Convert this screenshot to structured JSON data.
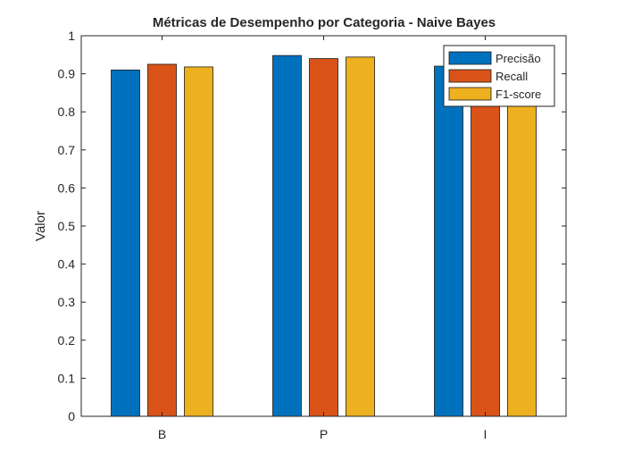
{
  "chart_data": {
    "type": "bar",
    "title": "Métricas de Desempenho por Categoria - Naive Bayes",
    "xlabel": "",
    "ylabel": "Valor",
    "categories": [
      "B",
      "P",
      "I"
    ],
    "ylim": [
      0,
      1
    ],
    "yticks": [
      0,
      0.1,
      0.2,
      0.3,
      0.4,
      0.5,
      0.6,
      0.7,
      0.8,
      0.9,
      1
    ],
    "ytick_labels": [
      "0",
      "0.1",
      "0.2",
      "0.3",
      "0.4",
      "0.5",
      "0.6",
      "0.7",
      "0.8",
      "0.9",
      "1"
    ],
    "grid": false,
    "legend_position": "top-right",
    "series": [
      {
        "name": "Precisão",
        "color": "#0072BD",
        "values": [
          0.91,
          0.948,
          0.92
        ]
      },
      {
        "name": "Recall",
        "color": "#D95319",
        "values": [
          0.925,
          0.94,
          0.91
        ]
      },
      {
        "name": "F1-score",
        "color": "#EDB120",
        "values": [
          0.918,
          0.944,
          0.915
        ]
      }
    ]
  }
}
